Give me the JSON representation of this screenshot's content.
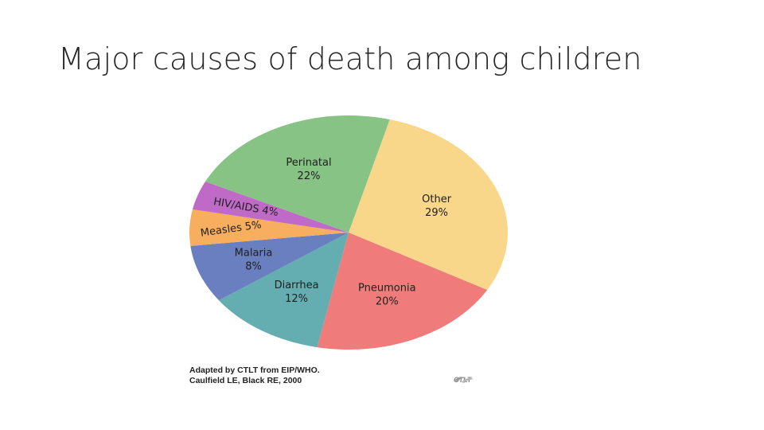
{
  "slide": {
    "title": "Major causes of death among children"
  },
  "chart_data": {
    "type": "pie",
    "categories": [
      "Other",
      "Pneumonia",
      "Diarrhea",
      "Malaria",
      "Measles",
      "HIV/AIDS",
      "Perinatal"
    ],
    "values": [
      29,
      20,
      12,
      8,
      5,
      4,
      22
    ],
    "labels": [
      [
        "Other",
        "29%"
      ],
      [
        "Pneumonia",
        "20%"
      ],
      [
        "Diarrhea",
        "12%"
      ],
      [
        "Malaria",
        "8%"
      ],
      [
        "Measles 5%"
      ],
      [
        "HIV/AIDS 4%"
      ],
      [
        "Perinatal",
        "22%"
      ]
    ],
    "colors": [
      "#f8d68a",
      "#f07b7b",
      "#64adb0",
      "#6a7fbf",
      "#f7ae5e",
      "#bf6ac6",
      "#86c385"
    ],
    "title": "",
    "legend": "none"
  },
  "source": {
    "line1": "Adapted by CTLT from EIP/WHO.",
    "line2": "Caulfield LE, Black RE, 2000"
  },
  "logo": {
    "text": "CTLT",
    "icon": "ctlt-logo-icon"
  }
}
